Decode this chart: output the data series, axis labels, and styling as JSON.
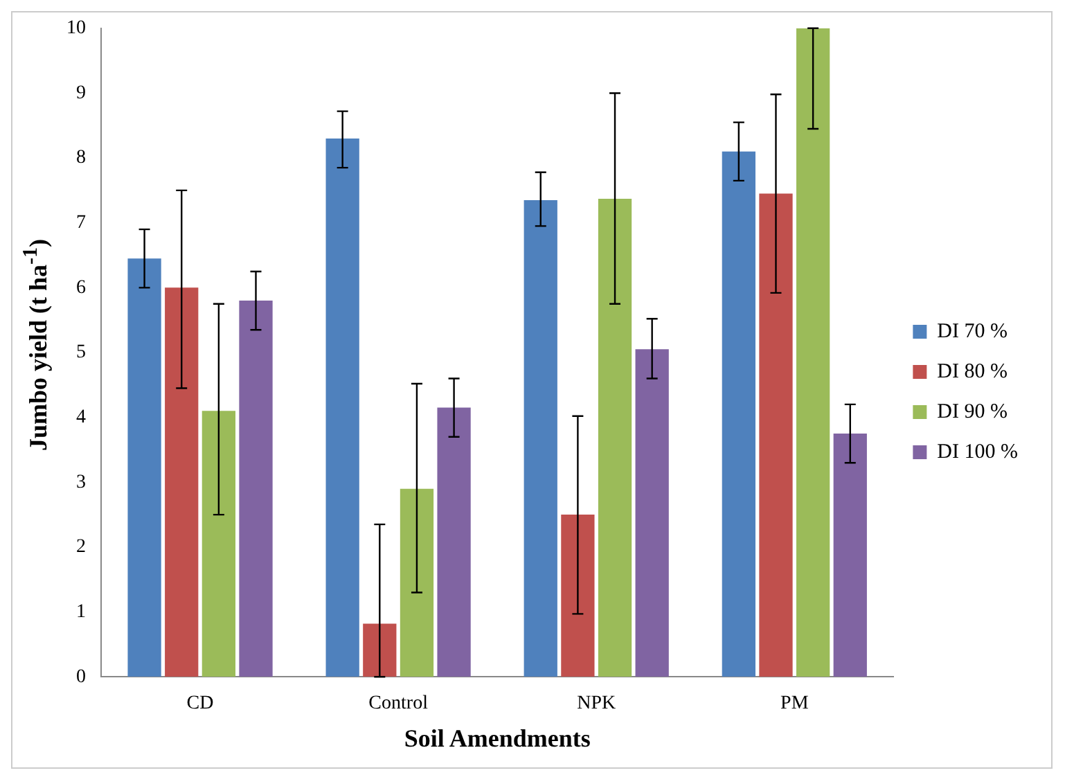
{
  "chart_data": {
    "type": "bar",
    "xlabel": "Soil Amendments",
    "ylabel": "Jumbo yield (t ha$^{-1}$)",
    "categories": [
      "CD",
      "Control",
      "NPK",
      "PM"
    ],
    "series": [
      {
        "name": "DI 70 %",
        "color": "#4f81bd",
        "values": [
          6.45,
          8.3,
          7.35,
          8.1
        ],
        "errors": [
          [
            6.0,
            6.9
          ],
          [
            7.85,
            8.72
          ],
          [
            6.95,
            7.78
          ],
          [
            7.65,
            8.55
          ]
        ]
      },
      {
        "name": "DI 80 %",
        "color": "#c0504d",
        "values": [
          6.0,
          0.82,
          2.5,
          7.45
        ],
        "errors": [
          [
            4.45,
            7.5
          ],
          [
            0,
            2.35
          ],
          [
            0.97,
            4.02
          ],
          [
            5.92,
            8.98
          ]
        ]
      },
      {
        "name": "DI 90 %",
        "color": "#9bbb59",
        "values": [
          4.1,
          2.9,
          7.37,
          10.0
        ],
        "errors": [
          [
            2.5,
            5.75
          ],
          [
            1.3,
            4.52
          ],
          [
            5.75,
            9.0
          ],
          [
            8.45,
            10.0
          ]
        ]
      },
      {
        "name": "DI 100 %",
        "color": "#8064a2",
        "values": [
          5.8,
          4.15,
          5.05,
          3.75
        ],
        "errors": [
          [
            5.35,
            6.25
          ],
          [
            3.7,
            4.6
          ],
          [
            4.6,
            5.52
          ],
          [
            3.3,
            4.2
          ]
        ]
      }
    ],
    "ylim": [
      0,
      10
    ],
    "yticks": [
      0,
      1,
      2,
      3,
      4,
      5,
      6,
      7,
      8,
      9,
      10
    ],
    "grid": false,
    "legend": "right"
  }
}
